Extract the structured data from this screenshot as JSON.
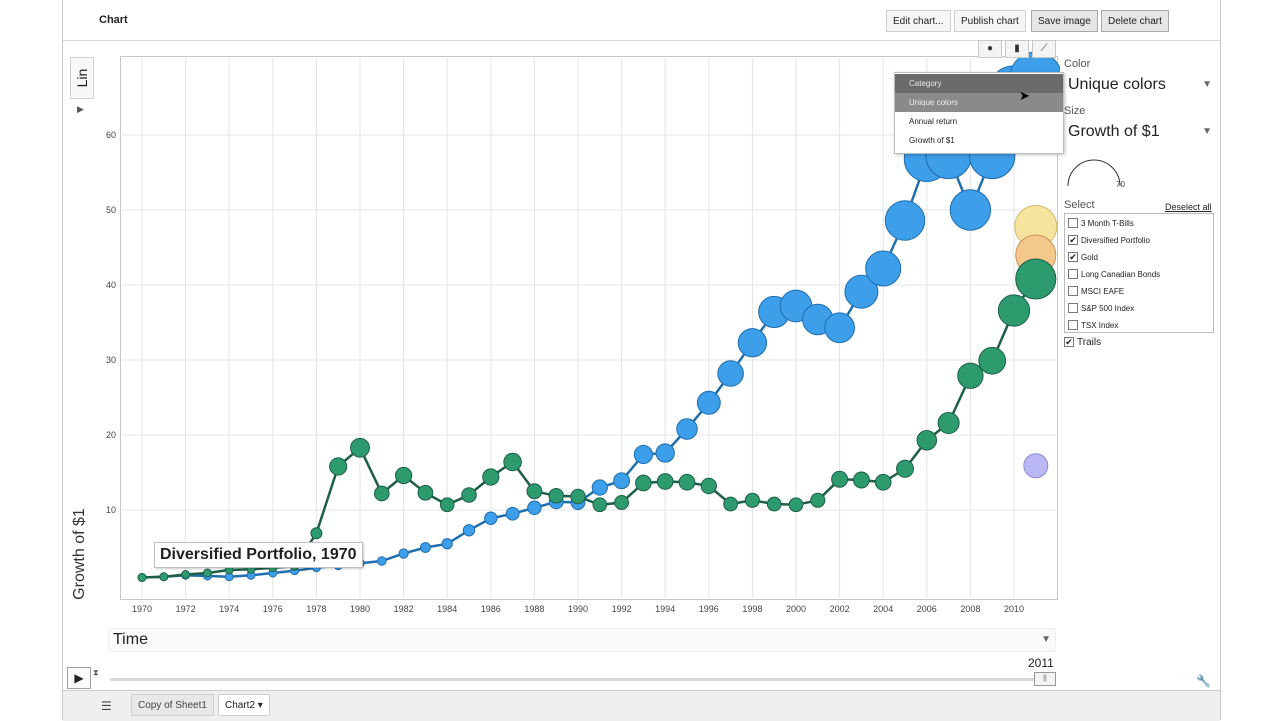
{
  "toolbar": {
    "title": "Chart",
    "edit": "Edit chart...",
    "publish": "Publish chart",
    "save_image": "Save image",
    "delete": "Delete chart"
  },
  "yaxis": {
    "scale_selector": "Lin",
    "label": "Growth of $1"
  },
  "xaxis": {
    "selector": "Time"
  },
  "chart_tabs": [
    "bubble-chart-icon",
    "bar-chart-icon",
    "line-chart-icon"
  ],
  "color_menu": {
    "items": [
      "Category",
      "Unique colors",
      "Annual return",
      "Growth of $1"
    ]
  },
  "side": {
    "color_label": "Color",
    "color_value": "Unique colors",
    "size_label": "Size",
    "size_value": "Growth of $1",
    "size_gauge_value": "70",
    "select_label": "Select",
    "deselect_all": "Deselect all",
    "trails": "Trails",
    "trails_checked": true,
    "entities": [
      {
        "name": "3 Month T-Bills",
        "checked": false
      },
      {
        "name": "Diversified Portfolio",
        "checked": true
      },
      {
        "name": "Gold",
        "checked": true
      },
      {
        "name": "Long Canadian Bonds",
        "checked": false
      },
      {
        "name": "MSCI EAFE",
        "checked": false
      },
      {
        "name": "S&P 500 Index",
        "checked": false
      },
      {
        "name": "TSX Index",
        "checked": false
      }
    ]
  },
  "player": {
    "year": "2011",
    "play_icon": "play-icon"
  },
  "tooltip": "Diversified Portfolio, 1970",
  "sheets": {
    "menu_icon": "menu-icon",
    "tabs": [
      "Copy of Sheet1",
      "Chart2"
    ]
  },
  "colors": {
    "portfolio": "#3d9eea",
    "gold": "#2e9b6f",
    "yellow_bubble": "#f6e3a0",
    "orange_bubble": "#f3c88a",
    "purple_bubble": "#b9b8f5"
  },
  "chart_data": {
    "type": "scatter",
    "xlabel": "Time",
    "ylabel": "Growth of $1",
    "xlim": [
      1969.5,
      2012
    ],
    "ylim": [
      0,
      70
    ],
    "x_ticks": [
      "1970",
      "1972",
      "1974",
      "1976",
      "1978",
      "1980",
      "1982",
      "1984",
      "1986",
      "1988",
      "1990",
      "1992",
      "1994",
      "1996",
      "1998",
      "2000",
      "2002",
      "2004",
      "2006",
      "2008",
      "2010"
    ],
    "y_ticks": [
      "10",
      "20",
      "30",
      "40",
      "50",
      "60"
    ],
    "series": [
      {
        "name": "Diversified Portfolio",
        "x": [
          1970,
          1971,
          1972,
          1973,
          1974,
          1975,
          1976,
          1977,
          1978,
          1979,
          1980,
          1981,
          1982,
          1983,
          1984,
          1985,
          1986,
          1987,
          1988,
          1989,
          1990,
          1991,
          1992,
          1993,
          1994,
          1995,
          1996,
          1997,
          1998,
          1999,
          2000,
          2001,
          2002,
          2003,
          2004,
          2005,
          2006,
          2007,
          2008,
          2009,
          2010,
          2011
        ],
        "y": [
          1.0,
          1.1,
          1.3,
          1.2,
          1.1,
          1.3,
          1.6,
          1.9,
          2.3,
          2.6,
          2.9,
          3.2,
          4.2,
          5.0,
          5.5,
          7.3,
          8.9,
          9.5,
          10.3,
          11.1,
          11.0,
          13.0,
          13.9,
          17.4,
          17.6,
          20.8,
          24.3,
          28.2,
          32.3,
          36.4,
          37.2,
          35.4,
          34.3,
          39.1,
          42.2,
          48.6,
          56.8,
          57.2,
          50.0,
          57.2,
          65.8,
          67.6
        ]
      },
      {
        "name": "Gold",
        "x": [
          1970,
          1971,
          1972,
          1973,
          1974,
          1975,
          1976,
          1977,
          1978,
          1979,
          1980,
          1981,
          1982,
          1983,
          1984,
          1985,
          1986,
          1987,
          1988,
          1989,
          1990,
          1991,
          1992,
          1993,
          1994,
          1995,
          1996,
          1997,
          1998,
          1999,
          2000,
          2001,
          2002,
          2003,
          2004,
          2005,
          2006,
          2007,
          2008,
          2009,
          2010,
          2011
        ],
        "y": [
          1.0,
          1.1,
          1.4,
          1.6,
          2.0,
          2.1,
          2.3,
          2.5,
          6.9,
          15.8,
          18.3,
          12.2,
          14.6,
          12.3,
          10.7,
          12.0,
          14.4,
          16.4,
          12.5,
          11.9,
          11.8,
          10.7,
          11.0,
          13.6,
          13.8,
          13.7,
          13.2,
          10.8,
          11.3,
          10.8,
          10.7,
          11.3,
          14.1,
          14.0,
          13.7,
          15.5,
          19.3,
          21.6,
          27.9,
          29.9,
          36.6,
          40.8
        ]
      },
      {
        "name": "Gold (tail, orange)",
        "x": [
          2011
        ],
        "y": [
          44.0
        ]
      },
      {
        "name": "Gold (tail, yellow)",
        "x": [
          2011
        ],
        "y": [
          47.8
        ]
      },
      {
        "name": "3 Month T-Bills",
        "x": [
          2011
        ],
        "y": [
          15.9
        ]
      }
    ]
  }
}
